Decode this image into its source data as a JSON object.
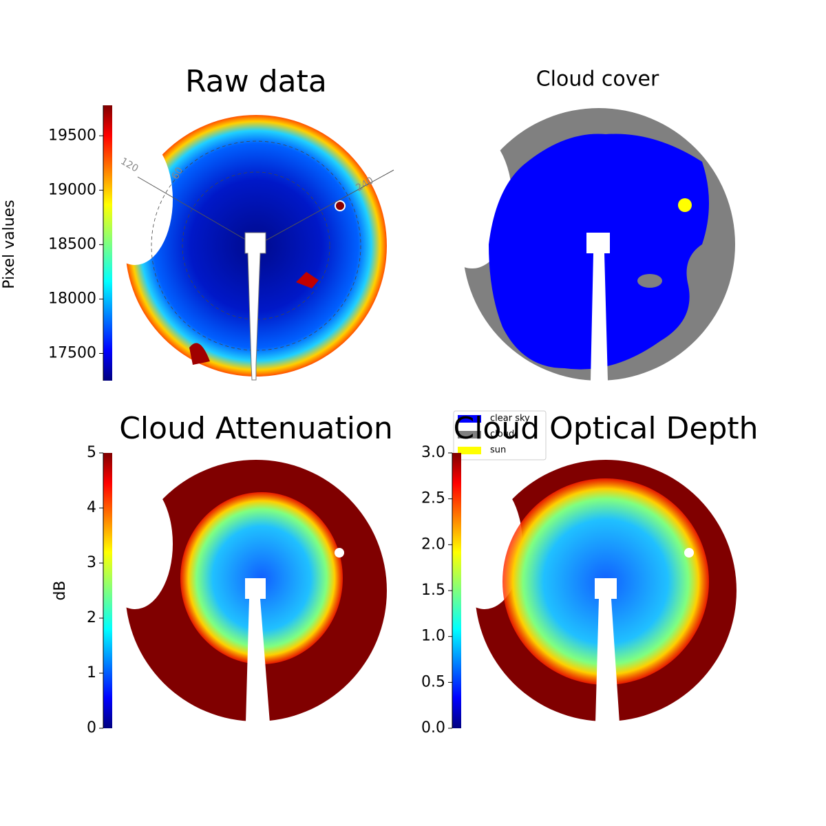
{
  "chart_data": [
    {
      "type": "image",
      "title": "Raw data",
      "colormap": "jet",
      "ylabel": "Pixel values",
      "ylim": [
        17250,
        19780
      ],
      "yticks": [
        17500,
        18000,
        18500,
        19000,
        19500
      ],
      "annotations": [
        "120",
        "60",
        "240"
      ]
    },
    {
      "type": "categorical-image",
      "title": "Cloud cover",
      "series": [
        {
          "name": "clear sky",
          "color": "#0000ff"
        },
        {
          "name": "cloud",
          "color": "#808080"
        },
        {
          "name": "sun",
          "color": "#ffff00"
        }
      ]
    },
    {
      "type": "image",
      "title": "Cloud Attenuation",
      "colormap": "jet",
      "ylabel": "dB",
      "ylim": [
        0,
        5
      ],
      "yticks": [
        0,
        1,
        2,
        3,
        4,
        5
      ]
    },
    {
      "type": "image",
      "title": "Cloud Optical Depth",
      "colormap": "jet",
      "ylim": [
        0,
        3
      ],
      "yticks": [
        {
          "value": 0,
          "label": "0.0"
        },
        {
          "value": 0.5,
          "label": "0.5"
        },
        {
          "value": 1,
          "label": "1.0"
        },
        {
          "value": 1.5,
          "label": "1.5"
        },
        {
          "value": 2,
          "label": "2.0"
        },
        {
          "value": 2.5,
          "label": "2.5"
        },
        {
          "value": 3,
          "label": "3.0"
        }
      ]
    }
  ]
}
